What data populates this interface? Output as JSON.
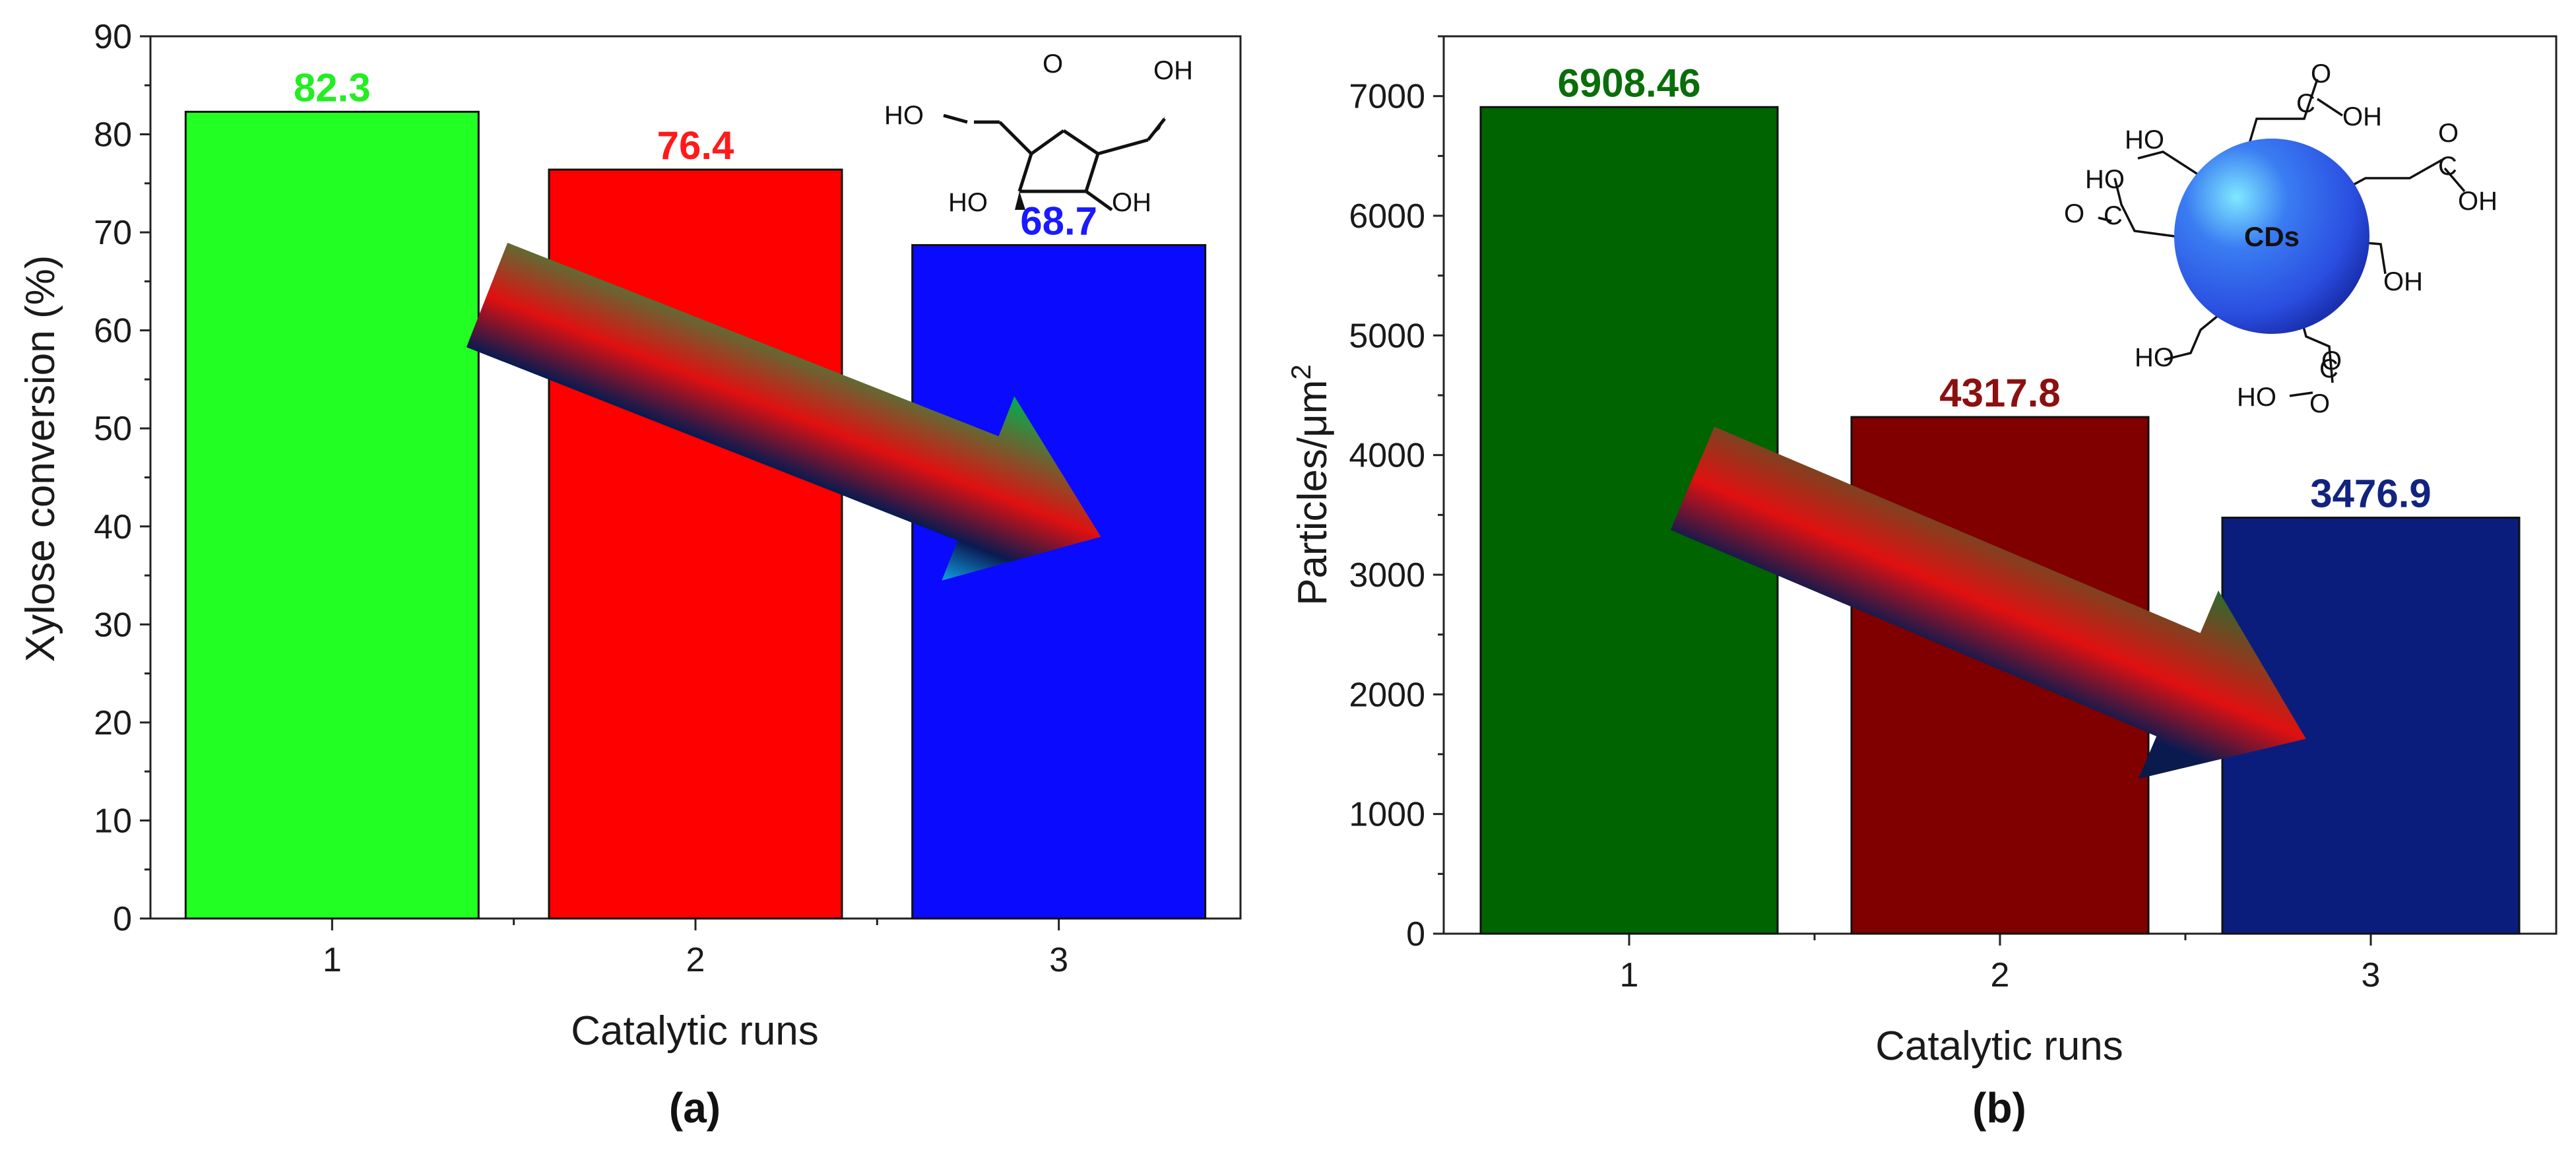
{
  "chart_data": [
    {
      "type": "bar",
      "panel": "(a)",
      "categories": [
        "1",
        "2",
        "3"
      ],
      "values": [
        82.3,
        76.4,
        68.7
      ],
      "value_labels": [
        "82.3",
        "76.4",
        "68.7"
      ],
      "bar_colors": [
        "#22ff22",
        "#ff0000",
        "#0a0aff"
      ],
      "label_colors": [
        "#22ee22",
        "#ff1a1a",
        "#1a1aff"
      ],
      "xlabel": "Catalytic runs",
      "ylabel": "Xylose conversion (%)",
      "ylim": [
        0,
        90
      ],
      "yticks": [
        0,
        10,
        20,
        30,
        40,
        50,
        60,
        70,
        80,
        90
      ],
      "inset": {
        "type": "xylose-furanose-structure",
        "labels": [
          "HO",
          "O",
          "OH",
          "HO",
          "OH"
        ]
      },
      "annotation": "decreasing-trend-arrow"
    },
    {
      "type": "bar",
      "panel": "(b)",
      "categories": [
        "1",
        "2",
        "3"
      ],
      "values": [
        6908.46,
        4317.8,
        3476.9
      ],
      "value_labels": [
        "6908.46",
        "4317.8",
        "3476.9"
      ],
      "bar_colors": [
        "#006400",
        "#800000",
        "#0b1d7c"
      ],
      "label_colors": [
        "#0a6e0a",
        "#8b1010",
        "#122480"
      ],
      "xlabel": "Catalytic runs",
      "ylabel": "Particles/μm",
      "ylabel_superscript": "2",
      "ylim": [
        0,
        7500
      ],
      "yticks": [
        0,
        1000,
        2000,
        3000,
        4000,
        5000,
        6000,
        7000
      ],
      "inset": {
        "type": "carbon-dot-structure",
        "center_label": "CDs",
        "labels": [
          "O",
          "C",
          "OH",
          "HO",
          "HO",
          "O",
          "C",
          "O",
          "C",
          "OH",
          "HO",
          "OH",
          "HO",
          "C",
          "O",
          "O",
          "HO"
        ]
      },
      "annotation": "decreasing-trend-arrow"
    }
  ]
}
